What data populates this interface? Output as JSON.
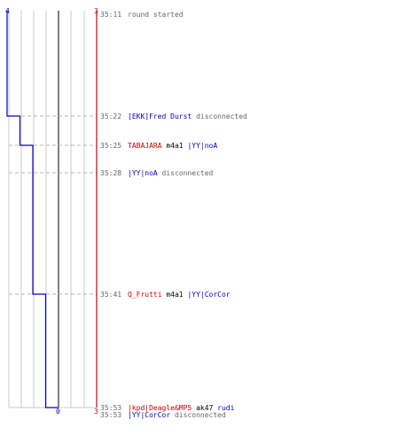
{
  "colors": {
    "background": "#ffffff",
    "team_blue": "#0000cc",
    "team_red": "#cc0000",
    "time_text": "#666666",
    "event_text": "#666666",
    "grid_line": "#c8c8c8",
    "center_line": "#808080",
    "dashed_line": "#b4b4b4"
  },
  "scale": {
    "blue_top_label": "4",
    "red_top_label": "3",
    "zero_label": "0",
    "red_bottom_label": "3"
  },
  "chart_data": {
    "type": "line",
    "series_blue_alive": [
      4,
      3,
      2,
      1,
      0
    ],
    "series_blue_times": [
      "35:11",
      "35:22",
      "35:25",
      "35:41",
      "35:53"
    ],
    "series_red_alive": [
      3,
      3
    ]
  },
  "events": [
    {
      "time": "35:11",
      "parts": [
        {
          "text": "round started",
          "role": "event"
        }
      ]
    },
    {
      "time": "35:22",
      "parts": [
        {
          "text": "[EKK]Fred Durst",
          "role": "blue"
        },
        {
          "text": " disconnected",
          "role": "event"
        }
      ]
    },
    {
      "time": "35:25",
      "parts": [
        {
          "text": "TABAJARA",
          "role": "red"
        },
        {
          "text": " m4a1 ",
          "role": "weapon"
        },
        {
          "text": "|YY|noA",
          "role": "blue"
        }
      ]
    },
    {
      "time": "35:28",
      "parts": [
        {
          "text": "|YY|noA",
          "role": "blue"
        },
        {
          "text": " disconnected",
          "role": "event"
        }
      ]
    },
    {
      "time": "35:41",
      "parts": [
        {
          "text": "Q_Frutti",
          "role": "red"
        },
        {
          "text": " m4a1 ",
          "role": "weapon"
        },
        {
          "text": "|YY|CorCor",
          "role": "blue"
        }
      ]
    },
    {
      "time": "35:53",
      "parts": [
        {
          "text": "|kpd|Deagle&MP5",
          "role": "red"
        },
        {
          "text": " ak47 ",
          "role": "weapon"
        },
        {
          "text": "rudi",
          "role": "blue"
        }
      ]
    },
    {
      "time": "35:53",
      "parts": [
        {
          "text": "|YY|CorCor",
          "role": "blue"
        },
        {
          "text": " disconnected",
          "role": "event"
        }
      ]
    }
  ]
}
